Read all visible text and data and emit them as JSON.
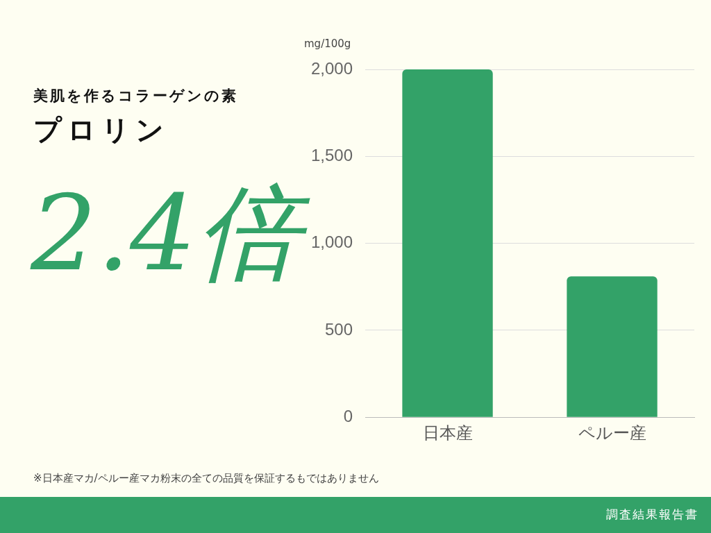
{
  "chart_data": {
    "type": "bar",
    "title": "プロリン",
    "subtitle": "美肌を作るコラーゲンの素",
    "ylabel": "mg/100g",
    "categories": [
      "日本産",
      "ペルー産"
    ],
    "values": [
      2000,
      810
    ],
    "color": "#33a268",
    "ylim": [
      0,
      2000
    ],
    "yticks": [
      0,
      {
        "value": 500,
        "label": "500"
      },
      {
        "value": 1000,
        "label": "1,000"
      },
      {
        "value": 1500,
        "label": "1,500"
      },
      {
        "value": 2000,
        "label": "2,000"
      }
    ],
    "grid": "y",
    "legend": false,
    "annotations": [
      "2.4倍",
      "※日本産マカ/ペルー産マカ粉末の全ての品質を保証するもではありません",
      "調査結果報告書"
    ]
  }
}
